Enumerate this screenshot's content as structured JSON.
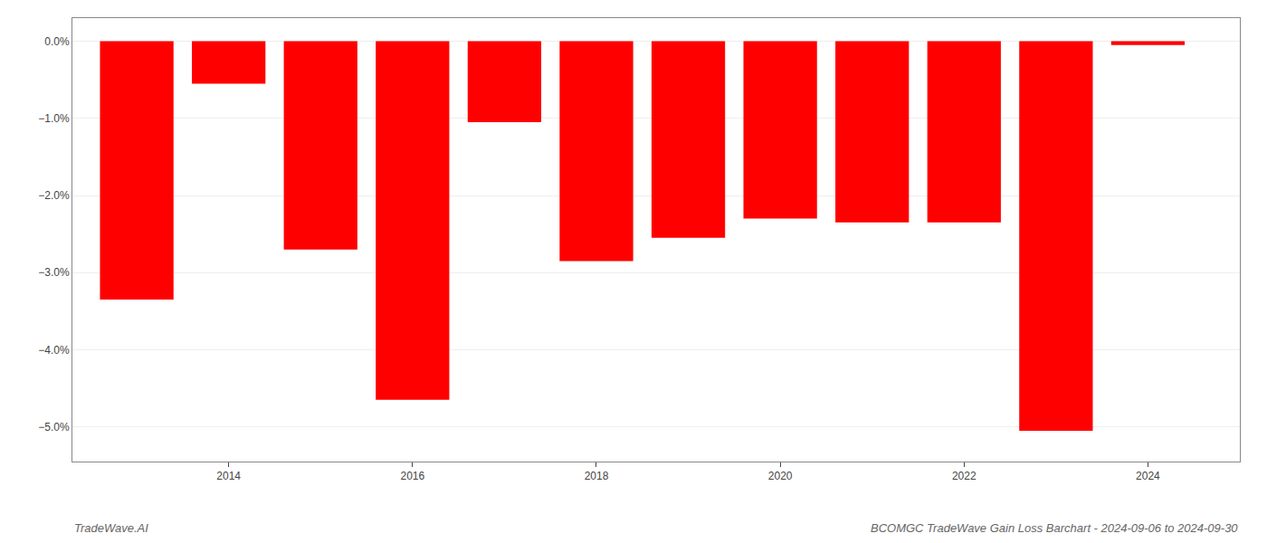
{
  "chart_data": {
    "type": "bar",
    "title": "BCOMGC TradeWave Gain Loss Barchart - 2024-09-06 to 2024-09-30",
    "annotations": [
      "TradeWave.AI"
    ],
    "x": [
      2013,
      2014,
      2015,
      2016,
      2017,
      2018,
      2019,
      2020,
      2021,
      2022,
      2023,
      2024
    ],
    "values": [
      -3.35,
      -0.55,
      -2.7,
      -4.65,
      -1.05,
      -2.85,
      -2.55,
      -2.3,
      -2.35,
      -2.35,
      -5.05,
      -0.05
    ],
    "color": "#ff0000",
    "xlim": [
      2012.3,
      2025.0
    ],
    "xticks": [
      2014,
      2016,
      2018,
      2020,
      2022,
      2024
    ],
    "ylim": [
      -5.45,
      0.3
    ],
    "yticks": [
      {
        "value": 0.0,
        "label": "0.0%"
      },
      {
        "value": -1.0,
        "label": "−1.0%"
      },
      {
        "value": -2.0,
        "label": "−2.0%"
      },
      {
        "value": -3.0,
        "label": "−3.0%"
      },
      {
        "value": -4.0,
        "label": "−4.0%"
      },
      {
        "value": -5.0,
        "label": "−5.0%"
      }
    ],
    "grid": true
  }
}
